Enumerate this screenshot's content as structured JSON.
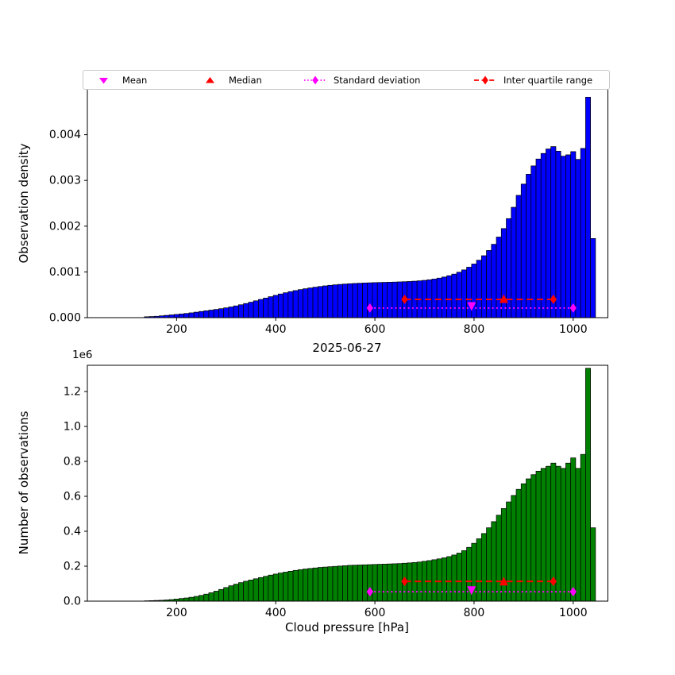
{
  "figure": {
    "background": "#FFFFFF",
    "frame_color": "#000000"
  },
  "legend": {
    "items": [
      {
        "label": "Mean",
        "marker": "triangle-down",
        "color": "#FF00FF",
        "line": "none"
      },
      {
        "label": "Median",
        "marker": "triangle-up",
        "color": "#FF0000",
        "line": "none"
      },
      {
        "label": "Standard deviation",
        "marker": "diamond",
        "color": "#FF00FF",
        "line": "dotted"
      },
      {
        "label": "Inter quartile range",
        "marker": "diamond",
        "color": "#FF0000",
        "line": "dashed"
      }
    ]
  },
  "chart_data": [
    {
      "type": "bar",
      "subtype": "histogram",
      "title": "",
      "ylabel": "Observation density",
      "bar_color": "#0000FF",
      "bar_edge_color": "#000000",
      "grid": false,
      "xlim": [
        20,
        1070
      ],
      "ylim": [
        0,
        0.005
      ],
      "xticks": [
        200,
        400,
        600,
        800,
        1000
      ],
      "xtick_labels": [
        "200",
        "400",
        "600",
        "800",
        "1000"
      ],
      "yticks": [
        0,
        0.001,
        0.002,
        0.003,
        0.004
      ],
      "ytick_labels": [
        "0.000",
        "0.001",
        "0.002",
        "0.003",
        "0.004"
      ],
      "bins": {
        "start": 135,
        "width": 10
      },
      "values": [
        2e-05,
        2.5e-05,
        3e-05,
        4e-05,
        5e-05,
        6e-05,
        7e-05,
        8e-05,
        9.2e-05,
        0.000105,
        0.00012,
        0.000135,
        0.00015,
        0.000165,
        0.00018,
        0.000196,
        0.000214,
        0.000234,
        0.000257,
        0.000282,
        0.000309,
        0.000338,
        0.000368,
        0.000398,
        0.000428,
        0.000458,
        0.000488,
        0.000517,
        0.000544,
        0.000569,
        0.000592,
        0.000613,
        0.000632,
        0.00065,
        0.000666,
        0.000681,
        0.000695,
        0.000707,
        0.000718,
        0.000727,
        0.000735,
        0.000742,
        0.000748,
        0.000753,
        0.000758,
        0.000762,
        0.000766,
        0.000769,
        0.000772,
        0.000775,
        0.000778,
        0.000782,
        0.000786,
        0.000791,
        0.000797,
        0.000805,
        0.000815,
        0.000828,
        0.000844,
        0.000864,
        0.000888,
        0.000917,
        0.000952,
        0.000994,
        0.001044,
        0.001103,
        0.001173,
        0.001256,
        0.001354,
        0.001469,
        0.001604,
        0.001762,
        0.001948,
        0.002165,
        0.002413,
        0.002674,
        0.00292,
        0.003136,
        0.003318,
        0.003468,
        0.00359,
        0.003688,
        0.00374,
        0.00364,
        0.00353,
        0.00356,
        0.00363,
        0.00346,
        0.0037,
        0.00482,
        0.00173
      ],
      "stats": {
        "mean": {
          "x": 795,
          "y": 0.00026,
          "color": "#FF00FF",
          "marker": "triangle-down"
        },
        "median": {
          "x": 860,
          "y": 0.0004,
          "color": "#FF0000",
          "marker": "triangle-up"
        },
        "std_range": {
          "x1": 590,
          "x2": 1000,
          "y": 0.00021,
          "color": "#FF00FF",
          "style": "dotted"
        },
        "iqr_range": {
          "x1": 660,
          "x2": 960,
          "y": 0.0004,
          "color": "#FF0000",
          "style": "dashed"
        }
      }
    },
    {
      "type": "bar",
      "subtype": "histogram",
      "title": "2025-06-27",
      "xlabel": "Cloud pressure [hPa]",
      "ylabel": "Number of observations",
      "y_offset_text": "1e6",
      "y_unit": "millions",
      "bar_color": "#008000",
      "bar_edge_color": "#000000",
      "grid": false,
      "xlim": [
        20,
        1070
      ],
      "ylim": [
        0,
        1.35
      ],
      "xticks": [
        200,
        400,
        600,
        800,
        1000
      ],
      "xtick_labels": [
        "200",
        "400",
        "600",
        "800",
        "1000"
      ],
      "yticks": [
        0,
        0.2,
        0.4,
        0.6,
        0.8,
        1.0,
        1.2
      ],
      "ytick_labels": [
        "0.0",
        "0.2",
        "0.4",
        "0.6",
        "0.8",
        "1.0",
        "1.2"
      ],
      "bins": {
        "start": 135,
        "width": 10
      },
      "values": [
        0.002,
        0.003,
        0.004,
        0.005,
        0.007,
        0.009,
        0.012,
        0.015,
        0.018,
        0.022,
        0.027,
        0.033,
        0.04,
        0.048,
        0.057,
        0.067,
        0.078,
        0.088,
        0.097,
        0.106,
        0.114,
        0.121,
        0.128,
        0.135,
        0.142,
        0.149,
        0.155,
        0.161,
        0.166,
        0.171,
        0.176,
        0.18,
        0.184,
        0.187,
        0.19,
        0.193,
        0.195,
        0.197,
        0.199,
        0.201,
        0.203,
        0.205,
        0.206,
        0.207,
        0.208,
        0.209,
        0.21,
        0.211,
        0.212,
        0.213,
        0.214,
        0.215,
        0.217,
        0.219,
        0.221,
        0.224,
        0.228,
        0.232,
        0.237,
        0.242,
        0.248,
        0.255,
        0.264,
        0.275,
        0.289,
        0.308,
        0.331,
        0.357,
        0.387,
        0.42,
        0.455,
        0.492,
        0.53,
        0.568,
        0.605,
        0.64,
        0.672,
        0.7,
        0.724,
        0.744,
        0.76,
        0.772,
        0.79,
        0.772,
        0.76,
        0.79,
        0.82,
        0.76,
        0.84,
        1.333,
        0.42
      ],
      "stats": {
        "mean": {
          "x": 795,
          "y": 0.065,
          "color": "#FF00FF",
          "marker": "triangle-down"
        },
        "median": {
          "x": 860,
          "y": 0.11,
          "color": "#FF0000",
          "marker": "triangle-up"
        },
        "std_range": {
          "x1": 590,
          "x2": 1000,
          "y": 0.054,
          "color": "#FF00FF",
          "style": "dotted"
        },
        "iqr_range": {
          "x1": 660,
          "x2": 960,
          "y": 0.113,
          "color": "#FF0000",
          "style": "dashed"
        }
      }
    }
  ]
}
